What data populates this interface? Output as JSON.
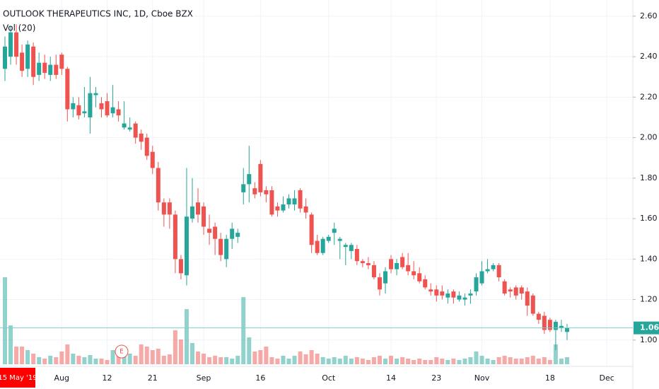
{
  "chart_data": {
    "type": "candlestick",
    "title": "OUTLOOK THERAPEUTICS INC, 1D, Cboe BZX",
    "subtitle": "Vol (20)",
    "cursor_label": "15 May '19",
    "earnings_marker": "E",
    "last_price": 1.06,
    "up_color": "#26a69a",
    "down_color": "#ef5350",
    "volume_up_color": "rgba(38,166,154,0.5)",
    "volume_down_color": "rgba(239,83,80,0.5)",
    "grid": true,
    "ylim": [
      0.87,
      2.68
    ],
    "yticks": [
      {
        "value": 1,
        "label": "1.00"
      },
      {
        "value": 1.2,
        "label": "1.20"
      },
      {
        "value": 1.4,
        "label": "1.40"
      },
      {
        "value": 1.6,
        "label": "1.60"
      },
      {
        "value": 1.8,
        "label": "1.80"
      },
      {
        "value": 2,
        "label": "2.00"
      },
      {
        "value": 2.2,
        "label": "2.20"
      },
      {
        "value": 2.4,
        "label": "2.40"
      },
      {
        "value": 2.6,
        "label": "2.60"
      }
    ],
    "volume_ylim": [
      0,
      125
    ],
    "categories": [
      null,
      null,
      null,
      null,
      null,
      null,
      null,
      null,
      null,
      null,
      "Aug",
      null,
      null,
      null,
      null,
      null,
      null,
      null,
      "12",
      null,
      null,
      null,
      null,
      null,
      null,
      null,
      "21",
      null,
      null,
      null,
      null,
      null,
      null,
      null,
      null,
      "Sep",
      null,
      null,
      null,
      null,
      null,
      null,
      null,
      null,
      null,
      "16",
      null,
      null,
      null,
      null,
      null,
      null,
      null,
      null,
      null,
      null,
      null,
      "Oct",
      null,
      null,
      null,
      null,
      null,
      null,
      null,
      null,
      null,
      null,
      "14",
      null,
      null,
      null,
      null,
      null,
      null,
      null,
      "23",
      null,
      null,
      null,
      null,
      null,
      null,
      null,
      "Nov",
      null,
      null,
      null,
      null,
      null,
      null,
      null,
      null,
      null,
      null,
      null,
      "18",
      null,
      null,
      null,
      null,
      null,
      null,
      null,
      null,
      null,
      "Dec"
    ],
    "open": [
      2.34,
      2.4,
      2.52,
      2.42,
      2.34,
      2.45,
      2.31,
      2.37,
      2.31,
      2.36,
      2.41,
      2.34,
      2.14,
      2.16,
      2.12,
      2.1,
      2.21,
      2.17,
      2.18,
      2.12,
      2.14,
      2.05,
      2.04,
      2.07,
      2.02,
      2.0,
      1.93,
      1.85,
      1.68,
      1.68,
      1.62,
      1.4,
      1.32,
      1.6,
      1.68,
      1.66,
      1.55,
      1.56,
      1.5,
      1.4,
      1.5,
      1.51,
      1.73,
      1.77,
      1.75,
      1.87,
      1.74,
      1.74,
      1.66,
      1.64,
      1.67,
      1.67,
      1.74,
      1.66,
      1.62,
      1.49,
      1.43,
      1.49,
      1.53,
      1.49,
      1.46,
      1.44,
      1.45,
      1.39,
      1.38,
      1.37,
      1.31,
      1.28,
      1.4,
      1.35,
      1.41,
      1.37,
      1.34,
      1.33,
      1.3,
      1.25,
      1.25,
      1.24,
      1.21,
      1.24,
      1.2,
      1.2,
      1.22,
      1.24,
      1.28,
      1.34,
      1.35,
      1.37,
      1.29,
      1.25,
      1.26,
      1.26,
      1.24,
      1.22,
      1.13,
      1.12,
      1.1,
      1.05,
      1.06,
      1.04,
      null,
      null,
      null,
      null,
      null,
      null,
      null
    ],
    "high": [
      2.5,
      2.55,
      2.56,
      2.46,
      2.48,
      2.47,
      2.42,
      2.41,
      2.4,
      2.41,
      2.42,
      2.35,
      2.2,
      2.2,
      2.25,
      2.3,
      2.25,
      2.2,
      2.22,
      2.26,
      2.18,
      2.18,
      2.1,
      2.08,
      2.04,
      2.02,
      1.96,
      1.88,
      1.7,
      1.7,
      1.64,
      1.42,
      1.85,
      1.8,
      1.75,
      1.68,
      1.62,
      1.58,
      1.53,
      1.52,
      1.58,
      1.55,
      1.85,
      1.96,
      1.78,
      1.89,
      1.76,
      1.76,
      1.68,
      1.71,
      1.72,
      1.74,
      1.75,
      1.7,
      1.63,
      1.52,
      1.51,
      1.52,
      1.58,
      1.51,
      1.48,
      1.48,
      1.47,
      1.4,
      1.41,
      1.39,
      1.33,
      1.36,
      1.42,
      1.4,
      1.43,
      1.43,
      1.39,
      1.36,
      1.32,
      1.28,
      1.27,
      1.27,
      1.25,
      1.25,
      1.24,
      1.23,
      1.25,
      1.33,
      1.39,
      1.4,
      1.38,
      1.38,
      1.3,
      1.26,
      1.27,
      1.27,
      1.26,
      1.23,
      1.14,
      1.14,
      1.11,
      1.1,
      1.1,
      1.08,
      null,
      null,
      null,
      null,
      null,
      null,
      null
    ],
    "low": [
      2.28,
      2.36,
      2.36,
      2.3,
      2.3,
      2.26,
      2.28,
      2.29,
      2.28,
      2.29,
      2.31,
      2.08,
      2.1,
      2.09,
      2.1,
      2.02,
      2.15,
      2.1,
      2.1,
      2.1,
      2.08,
      2.04,
      2.03,
      1.97,
      1.94,
      1.89,
      1.82,
      1.64,
      1.56,
      1.55,
      1.33,
      1.3,
      1.27,
      1.58,
      1.58,
      1.52,
      1.47,
      1.42,
      1.39,
      1.36,
      1.45,
      1.48,
      1.67,
      1.68,
      1.7,
      1.71,
      1.68,
      1.61,
      1.61,
      1.63,
      1.65,
      1.64,
      1.63,
      1.6,
      1.43,
      1.42,
      1.42,
      1.48,
      1.47,
      1.4,
      1.37,
      1.4,
      1.37,
      1.36,
      1.35,
      1.3,
      1.22,
      1.23,
      1.33,
      1.32,
      1.35,
      1.32,
      1.3,
      1.28,
      1.25,
      1.22,
      1.19,
      1.2,
      1.18,
      1.18,
      1.19,
      1.17,
      1.18,
      1.22,
      1.27,
      1.33,
      1.34,
      1.29,
      1.22,
      1.21,
      1.2,
      1.2,
      1.12,
      1.12,
      1.08,
      1.03,
      1.04,
      0.95,
      1.04,
      1.0,
      null,
      null,
      null,
      null,
      null,
      null,
      null
    ],
    "close": [
      2.45,
      2.52,
      2.4,
      2.33,
      2.46,
      2.3,
      2.37,
      2.32,
      2.36,
      2.31,
      2.34,
      2.14,
      2.17,
      2.11,
      2.13,
      2.22,
      2.22,
      2.14,
      2.11,
      2.15,
      2.11,
      2.07,
      2.05,
      2.0,
      1.98,
      1.91,
      1.85,
      1.68,
      1.62,
      1.62,
      1.4,
      1.33,
      1.61,
      1.66,
      1.62,
      1.56,
      1.53,
      1.5,
      1.42,
      1.5,
      1.55,
      1.53,
      1.77,
      1.82,
      1.72,
      1.73,
      1.72,
      1.62,
      1.64,
      1.67,
      1.7,
      1.7,
      1.65,
      1.63,
      1.47,
      1.43,
      1.5,
      1.51,
      1.55,
      1.5,
      1.47,
      1.47,
      1.39,
      1.38,
      1.37,
      1.31,
      1.25,
      1.34,
      1.35,
      1.38,
      1.36,
      1.34,
      1.32,
      1.29,
      1.26,
      1.24,
      1.22,
      1.22,
      1.23,
      1.21,
      1.22,
      1.21,
      1.23,
      1.31,
      1.34,
      1.35,
      1.37,
      1.31,
      1.23,
      1.24,
      1.22,
      1.23,
      1.17,
      1.13,
      1.1,
      1.05,
      1.05,
      1.09,
      1.07,
      1.06,
      null,
      null,
      null,
      null,
      null,
      null,
      null
    ],
    "volume": [
      123,
      55,
      25,
      25,
      20,
      15,
      10,
      8,
      12,
      10,
      18,
      28,
      15,
      12,
      10,
      13,
      8,
      8,
      6,
      20,
      22,
      12,
      15,
      12,
      28,
      25,
      20,
      22,
      12,
      14,
      48,
      35,
      78,
      30,
      18,
      15,
      10,
      12,
      10,
      10,
      8,
      12,
      95,
      38,
      18,
      20,
      25,
      10,
      8,
      12,
      8,
      12,
      18,
      14,
      20,
      15,
      10,
      8,
      10,
      8,
      12,
      8,
      10,
      8,
      6,
      10,
      12,
      8,
      12,
      8,
      10,
      8,
      6,
      8,
      6,
      6,
      10,
      8,
      6,
      8,
      6,
      8,
      10,
      18,
      12,
      8,
      6,
      10,
      12,
      10,
      8,
      8,
      10,
      12,
      8,
      10,
      6,
      28,
      8,
      10,
      null,
      null,
      null,
      null,
      null,
      null,
      null
    ]
  }
}
